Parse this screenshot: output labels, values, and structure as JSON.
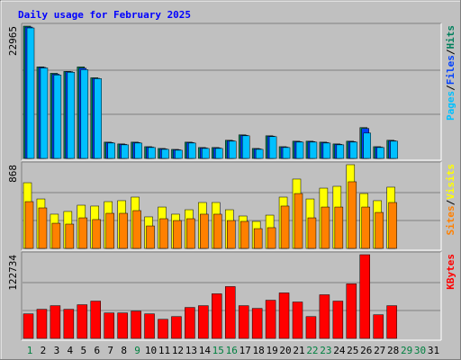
{
  "title": "Daily usage for February 2025",
  "legend_separator": "/",
  "chart_data": [
    {
      "type": "bar",
      "ylim": [
        0,
        22965
      ],
      "yticks": [
        22965
      ],
      "series": [
        {
          "name": "Hits",
          "color": "#00805c",
          "values": [
            22965,
            15890,
            14780,
            15100,
            15890,
            14000,
            2830,
            2520,
            2830,
            2040,
            1730,
            1570,
            2830,
            1890,
            1890,
            3150,
            4090,
            1730,
            3930,
            2040,
            2990,
            2990,
            2830,
            2520,
            2990,
            5350,
            2040,
            3150,
            null,
            null,
            null
          ]
        },
        {
          "name": "Files",
          "color": "#0040ff",
          "values": [
            22800,
            15790,
            14620,
            15050,
            15650,
            13900,
            2750,
            2440,
            2750,
            1960,
            1650,
            1500,
            2750,
            1810,
            1810,
            3060,
            4000,
            1650,
            3850,
            1960,
            2910,
            2910,
            2750,
            2440,
            2910,
            5200,
            1960,
            3060,
            null,
            null,
            null
          ]
        },
        {
          "name": "Pages",
          "color": "#00c0ff",
          "values": [
            22650,
            15700,
            14470,
            14950,
            15400,
            13840,
            2670,
            2360,
            2670,
            1890,
            1570,
            1420,
            2670,
            1730,
            1730,
            2990,
            3930,
            1570,
            3780,
            1890,
            2830,
            2830,
            2670,
            2360,
            2830,
            4400,
            1890,
            2990,
            null,
            null,
            null
          ]
        }
      ]
    },
    {
      "type": "bar",
      "ylim": [
        0,
        868
      ],
      "yticks": [
        868
      ],
      "series": [
        {
          "name": "Visits",
          "color": "#ffff00",
          "values": [
            681,
            513,
            355,
            383,
            448,
            439,
            485,
            495,
            532,
            327,
            429,
            355,
            401,
            476,
            476,
            401,
            336,
            280,
            345,
            532,
            719,
            513,
            625,
            644,
            868,
            569,
            495,
            635,
            null,
            null,
            null
          ]
        },
        {
          "name": "Sites",
          "color": "#ff8000",
          "values": [
            485,
            420,
            261,
            252,
            317,
            299,
            364,
            364,
            392,
            233,
            308,
            289,
            308,
            355,
            355,
            289,
            280,
            205,
            215,
            439,
            569,
            317,
            429,
            429,
            691,
            429,
            373,
            476,
            null,
            null,
            null
          ]
        }
      ]
    },
    {
      "type": "bar",
      "ylim": [
        0,
        122734
      ],
      "yticks": [
        122734
      ],
      "categories": [
        "1",
        "2",
        "3",
        "4",
        "5",
        "6",
        "7",
        "8",
        "9",
        "10",
        "11",
        "12",
        "13",
        "14",
        "15",
        "16",
        "17",
        "18",
        "19",
        "20",
        "21",
        "22",
        "23",
        "24",
        "25",
        "26",
        "27",
        "28",
        "29",
        "30",
        "31"
      ],
      "category_colors": [
        "#008040",
        "#000000",
        "#000000",
        "#000000",
        "#000000",
        "#000000",
        "#000000",
        "#000000",
        "#008040",
        "#000000",
        "#000000",
        "#000000",
        "#000000",
        "#000000",
        "#008040",
        "#008040",
        "#000000",
        "#000000",
        "#000000",
        "#000000",
        "#000000",
        "#008040",
        "#008040",
        "#000000",
        "#000000",
        "#000000",
        "#000000",
        "#000000",
        "#008040",
        "#008040",
        "#000000"
      ],
      "series": [
        {
          "name": "KBytes",
          "color": "#ff0000",
          "values": [
            36000,
            42700,
            48000,
            42700,
            49400,
            54700,
            37400,
            37400,
            40000,
            36000,
            28000,
            32000,
            45400,
            48000,
            65400,
            76000,
            48000,
            44000,
            56000,
            66700,
            53400,
            32000,
            64000,
            54700,
            80000,
            122734,
            34700,
            48000,
            null,
            null,
            null
          ]
        }
      ]
    }
  ]
}
